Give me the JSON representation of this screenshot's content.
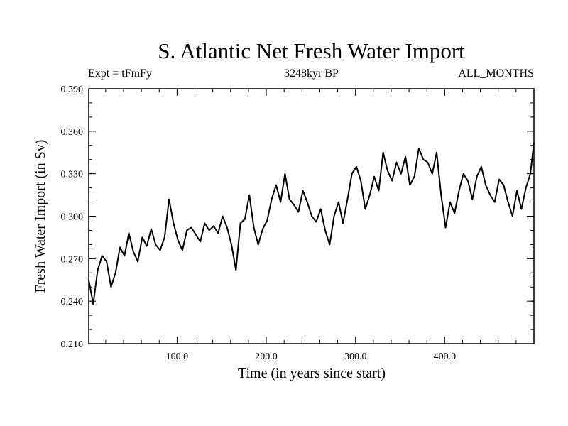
{
  "chart_data": {
    "type": "line",
    "title": "S. Atlantic Net Fresh Water Import",
    "subtitle_left": "Expt = tFmFy",
    "subtitle_center": "3248kyr BP",
    "subtitle_right": "ALL_MONTHS",
    "xlabel": "Time (in years since start)",
    "ylabel": "Fresh Water Import (in Sv)",
    "xlim": [
      1,
      500
    ],
    "ylim": [
      0.21,
      0.39
    ],
    "xticks": [
      100,
      200,
      300,
      400
    ],
    "xtick_labels": [
      "100.0",
      "200.0",
      "300.0",
      "400.0"
    ],
    "yticks": [
      0.21,
      0.24,
      0.27,
      0.3,
      0.33,
      0.36,
      0.39
    ],
    "ytick_labels": [
      "0.210",
      "0.240",
      "0.270",
      "0.300",
      "0.330",
      "0.360",
      "0.390"
    ],
    "grid": false,
    "series": [
      {
        "name": "S. Atlantic Net Fresh Water Import",
        "color": "#000000",
        "x": [
          1,
          6,
          11,
          16,
          21,
          26,
          31,
          36,
          41,
          46,
          51,
          56,
          61,
          66,
          71,
          76,
          81,
          86,
          91,
          96,
          101,
          106,
          111,
          116,
          121,
          126,
          131,
          136,
          141,
          146,
          151,
          156,
          161,
          166,
          171,
          176,
          181,
          186,
          191,
          196,
          201,
          206,
          211,
          216,
          221,
          226,
          231,
          236,
          241,
          246,
          251,
          256,
          261,
          266,
          271,
          276,
          281,
          286,
          291,
          296,
          301,
          306,
          311,
          316,
          321,
          326,
          331,
          336,
          341,
          346,
          351,
          356,
          361,
          366,
          371,
          376,
          381,
          386,
          391,
          396,
          401,
          406,
          411,
          416,
          421,
          426,
          431,
          436,
          441,
          446,
          451,
          456,
          461,
          466,
          471,
          476,
          481,
          486,
          491,
          496,
          500
        ],
        "values": [
          0.255,
          0.238,
          0.262,
          0.272,
          0.268,
          0.25,
          0.26,
          0.278,
          0.272,
          0.288,
          0.275,
          0.268,
          0.285,
          0.279,
          0.291,
          0.28,
          0.276,
          0.285,
          0.312,
          0.295,
          0.283,
          0.276,
          0.29,
          0.292,
          0.287,
          0.282,
          0.295,
          0.29,
          0.293,
          0.288,
          0.3,
          0.292,
          0.28,
          0.262,
          0.295,
          0.298,
          0.315,
          0.292,
          0.28,
          0.291,
          0.297,
          0.312,
          0.322,
          0.31,
          0.33,
          0.312,
          0.308,
          0.303,
          0.318,
          0.31,
          0.3,
          0.296,
          0.305,
          0.29,
          0.28,
          0.3,
          0.31,
          0.295,
          0.312,
          0.33,
          0.335,
          0.325,
          0.305,
          0.315,
          0.328,
          0.318,
          0.345,
          0.332,
          0.325,
          0.338,
          0.33,
          0.342,
          0.322,
          0.328,
          0.348,
          0.34,
          0.338,
          0.33,
          0.345,
          0.315,
          0.292,
          0.31,
          0.302,
          0.318,
          0.33,
          0.325,
          0.312,
          0.328,
          0.335,
          0.322,
          0.315,
          0.31,
          0.326,
          0.322,
          0.31,
          0.3,
          0.318,
          0.305,
          0.32,
          0.33,
          0.352
        ]
      }
    ]
  }
}
